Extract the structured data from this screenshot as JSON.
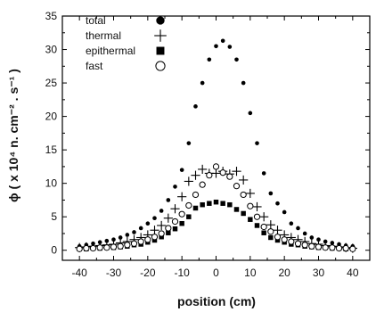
{
  "chart_data": {
    "type": "scatter",
    "xlabel": "position (cm)",
    "ylabel": "ϕ ( x 10⁴ n. cm⁻² . s⁻¹ )",
    "xlim": [
      -45,
      45
    ],
    "ylim": [
      -1.5,
      35
    ],
    "xticks": [
      -40,
      -30,
      -20,
      -10,
      0,
      10,
      20,
      30,
      40
    ],
    "yticks": [
      0,
      5,
      10,
      15,
      20,
      25,
      30,
      35
    ],
    "legend_position": "top-left",
    "series": [
      {
        "name": "total",
        "marker": "filled-circle",
        "x": [
          -40,
          -38,
          -36,
          -34,
          -32,
          -30,
          -28,
          -26,
          -24,
          -22,
          -20,
          -18,
          -16,
          -14,
          -12,
          -10,
          -8,
          -6,
          -4,
          -2,
          0,
          2,
          4,
          6,
          8,
          10,
          12,
          14,
          16,
          18,
          20,
          22,
          24,
          26,
          28,
          30,
          32,
          34,
          36,
          38,
          40
        ],
        "y": [
          0.6,
          0.8,
          1.0,
          1.2,
          1.4,
          1.6,
          1.9,
          2.3,
          2.7,
          3.3,
          4.0,
          4.8,
          5.9,
          7.5,
          9.5,
          12.0,
          16.0,
          21.5,
          25.0,
          28.5,
          30.5,
          31.3,
          30.4,
          28.5,
          25.0,
          20.5,
          16.0,
          11.5,
          8.5,
          7.0,
          5.7,
          4.0,
          3.3,
          2.5,
          1.9,
          1.6,
          1.3,
          1.1,
          0.9,
          0.7,
          0.6
        ]
      },
      {
        "name": "thermal",
        "marker": "plus",
        "x": [
          -40,
          -38,
          -36,
          -34,
          -32,
          -30,
          -28,
          -26,
          -24,
          -22,
          -20,
          -18,
          -16,
          -14,
          -12,
          -10,
          -8,
          -6,
          -4,
          -2,
          0,
          2,
          4,
          6,
          8,
          10,
          12,
          14,
          16,
          18,
          20,
          22,
          24,
          26,
          28,
          30,
          32,
          34,
          36,
          38,
          40
        ],
        "y": [
          0.4,
          0.5,
          0.6,
          0.7,
          0.8,
          0.9,
          1.1,
          1.3,
          1.6,
          1.9,
          2.3,
          3.0,
          3.7,
          4.8,
          6.2,
          8.0,
          10.3,
          11.2,
          12.1,
          11.5,
          11.5,
          11.8,
          11.4,
          11.8,
          10.5,
          8.5,
          6.5,
          5.0,
          3.8,
          3.0,
          2.3,
          1.9,
          1.6,
          1.3,
          1.0,
          0.9,
          0.7,
          0.6,
          0.5,
          0.4,
          0.3
        ]
      },
      {
        "name": "epithermal",
        "marker": "filled-square",
        "x": [
          -40,
          -38,
          -36,
          -34,
          -32,
          -30,
          -28,
          -26,
          -24,
          -22,
          -20,
          -18,
          -16,
          -14,
          -12,
          -10,
          -8,
          -6,
          -4,
          -2,
          0,
          2,
          4,
          6,
          8,
          10,
          12,
          14,
          16,
          18,
          20,
          22,
          24,
          26,
          28,
          30,
          32,
          34,
          36,
          38,
          40
        ],
        "y": [
          0.2,
          0.2,
          0.3,
          0.3,
          0.4,
          0.4,
          0.5,
          0.6,
          0.8,
          0.9,
          1.2,
          1.5,
          2.0,
          2.6,
          3.2,
          4.0,
          5.0,
          6.3,
          6.8,
          7.0,
          7.2,
          7.0,
          6.8,
          6.1,
          5.5,
          4.6,
          3.7,
          2.6,
          1.9,
          1.5,
          1.2,
          0.9,
          0.8,
          0.6,
          0.5,
          0.4,
          0.4,
          0.3,
          0.3,
          0.2,
          0.2
        ]
      },
      {
        "name": "fast",
        "marker": "open-circle",
        "x": [
          -40,
          -38,
          -36,
          -34,
          -32,
          -30,
          -28,
          -26,
          -24,
          -22,
          -20,
          -18,
          -16,
          -14,
          -12,
          -10,
          -8,
          -6,
          -4,
          -2,
          0,
          2,
          4,
          6,
          8,
          10,
          12,
          14,
          16,
          18,
          20,
          22,
          24,
          26,
          28,
          30,
          32,
          34,
          36,
          38,
          40
        ],
        "y": [
          0.2,
          0.3,
          0.3,
          0.4,
          0.4,
          0.5,
          0.6,
          0.8,
          1.0,
          1.3,
          1.6,
          2.0,
          2.5,
          3.3,
          4.3,
          5.4,
          6.7,
          8.3,
          9.8,
          11.2,
          12.5,
          11.6,
          11.0,
          9.6,
          8.3,
          6.6,
          5.0,
          3.5,
          2.8,
          2.0,
          1.6,
          1.3,
          1.0,
          0.8,
          0.6,
          0.5,
          0.4,
          0.4,
          0.3,
          0.3,
          0.2
        ]
      }
    ]
  }
}
